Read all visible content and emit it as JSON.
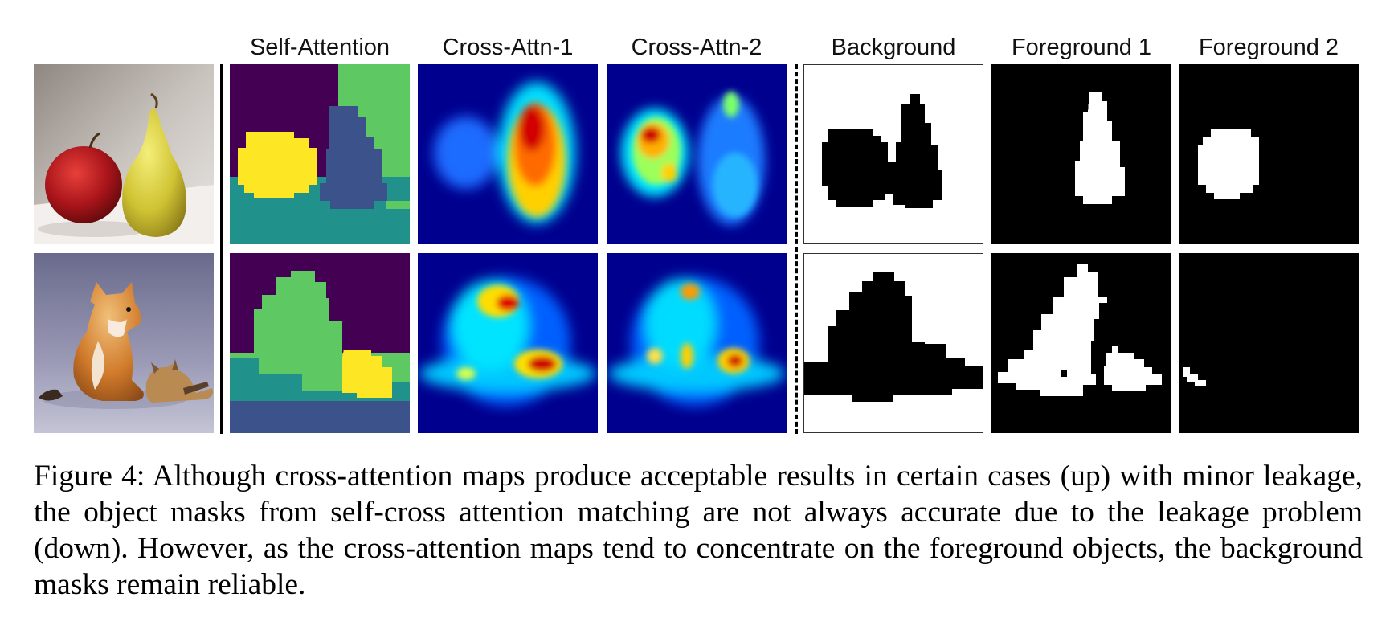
{
  "figure": {
    "column_headers": [
      "Self-Attention",
      "Cross-Attn-1",
      "Cross-Attn-2",
      "Background",
      "Foreground 1",
      "Foreground 2"
    ],
    "rows": [
      {
        "subject": "apple-and-pear"
      },
      {
        "subject": "shiba-dog-and-cat"
      }
    ],
    "colors": {
      "viridis_purple": "#440154",
      "viridis_teal": "#21918c",
      "viridis_green": "#5ec962",
      "viridis_blue": "#3b528b",
      "viridis_yellow": "#fde725",
      "jet_blue": "#00008f",
      "jet_red": "#e60000"
    }
  },
  "caption": {
    "text": "Figure 4: Although cross-attention maps produce acceptable results in certain cases (up) with minor leakage, the object masks from self-cross attention matching are not always accurate due to the leakage problem (down). However, as the cross-attention maps tend to concentrate on the foreground objects, the background masks remain reliable."
  }
}
